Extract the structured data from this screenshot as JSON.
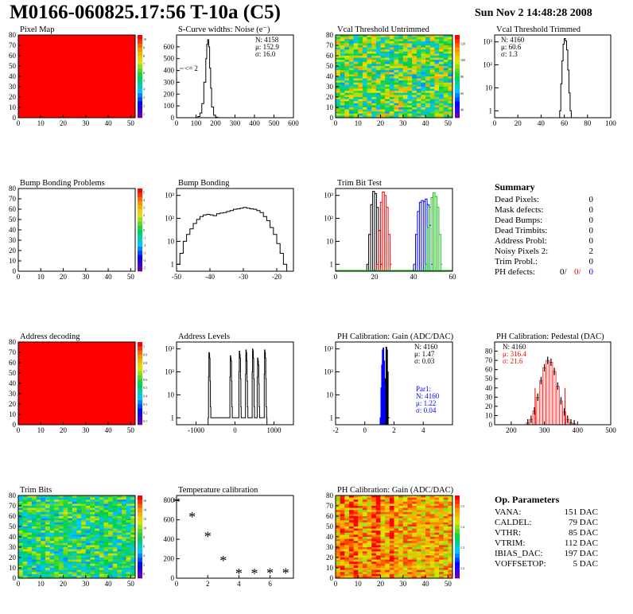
{
  "header": {
    "title": "M0166-060825.17:56 T-10a (C5)",
    "date": "Sun Nov  2 14:48:28 2008"
  },
  "colors": {
    "red": "#ff0000",
    "blue": "#0000ff",
    "green": "#00cc00",
    "black": "#000000"
  },
  "chart_data": [
    {
      "type": "heatmap",
      "title": "Pixel Map",
      "xlim": [
        0,
        52
      ],
      "ylim": [
        0,
        80
      ],
      "xticks": [
        "0",
        "10",
        "20",
        "30",
        "40",
        "50"
      ],
      "yticks": [
        "0",
        "10",
        "20",
        "30",
        "40",
        "50",
        "60",
        "70",
        "80"
      ],
      "uniform_value": 10,
      "palette_ticks": [
        "1",
        "2",
        "3",
        "4",
        "5",
        "6",
        "7",
        "8",
        "9",
        "10"
      ]
    },
    {
      "type": "bar",
      "title": "S-Curve widths: Noise (e⁻)",
      "xlim": [
        0,
        600
      ],
      "ylim": [
        0,
        700
      ],
      "xticks": [
        "0",
        "100",
        "200",
        "300",
        "400",
        "500",
        "600"
      ],
      "yticks": [
        "0",
        "100",
        "200",
        "300",
        "400",
        "500",
        "600"
      ],
      "stats": [
        "N: 4158",
        "μ: 152.9",
        "σ: 16.0"
      ],
      "annotation": "<= 2",
      "x": [
        100,
        110,
        120,
        130,
        140,
        150,
        155,
        160,
        165,
        170,
        175,
        180,
        190,
        200,
        210
      ],
      "values": [
        2,
        10,
        40,
        120,
        300,
        500,
        620,
        660,
        600,
        420,
        250,
        90,
        20,
        5,
        1
      ]
    },
    {
      "type": "heatmap",
      "title": "Vcal Threshold Untrimmed",
      "xlim": [
        0,
        52
      ],
      "ylim": [
        0,
        80
      ],
      "xticks": [
        "0",
        "10",
        "20",
        "30",
        "40",
        "50"
      ],
      "yticks": [
        "0",
        "10",
        "20",
        "30",
        "40",
        "50",
        "60",
        "70",
        "80"
      ],
      "value_range": [
        40,
        120
      ],
      "palette_ticks": [
        "40",
        "60",
        "80",
        "100",
        "120"
      ]
    },
    {
      "type": "bar",
      "title": "Vcal Threshold Trimmed",
      "log_y": true,
      "xlim": [
        0,
        100
      ],
      "ylim": [
        0.5,
        2000
      ],
      "xticks": [
        "0",
        "20",
        "40",
        "60",
        "80",
        "100"
      ],
      "yticks": [
        "1",
        "10",
        "10²",
        "10³"
      ],
      "stats": [
        "N: 4160",
        "μ: 60.6",
        "σ:  1.3"
      ],
      "x": [
        56,
        57,
        58,
        59,
        60,
        61,
        62,
        63,
        64,
        65
      ],
      "values": [
        1,
        15,
        150,
        800,
        1400,
        1100,
        450,
        60,
        6,
        1
      ]
    },
    {
      "type": "heatmap",
      "title": "Bump Bonding Problems",
      "xlim": [
        0,
        52
      ],
      "ylim": [
        0,
        80
      ],
      "xticks": [
        "0",
        "10",
        "20",
        "30",
        "40",
        "50"
      ],
      "yticks": [
        "0",
        "10",
        "20",
        "30",
        "40",
        "50",
        "60",
        "70",
        "80"
      ],
      "empty": true,
      "palette_ticks": [
        "-5",
        "-4",
        "-3",
        "-2",
        "-1",
        "0",
        "1",
        "2",
        "3",
        "4",
        "5"
      ]
    },
    {
      "type": "bar",
      "title": "Bump Bonding",
      "log_y": true,
      "xlim": [
        -50,
        -15
      ],
      "ylim": [
        0.5,
        2000
      ],
      "xticks": [
        "-50",
        "-40",
        "-30",
        "-20"
      ],
      "yticks": [
        "1",
        "10",
        "10²",
        "10³"
      ],
      "x": [
        -50,
        -49,
        -48,
        -47,
        -46,
        -45,
        -44,
        -43,
        -42,
        -41,
        -40,
        -39,
        -38,
        -37,
        -36,
        -35,
        -34,
        -33,
        -32,
        -31,
        -30,
        -29,
        -28,
        -27,
        -26,
        -25,
        -24,
        -23,
        -22,
        -21,
        -20,
        -19,
        -18,
        -17
      ],
      "values": [
        1,
        3,
        10,
        20,
        35,
        60,
        90,
        120,
        140,
        150,
        140,
        130,
        160,
        170,
        180,
        200,
        220,
        250,
        260,
        280,
        300,
        280,
        260,
        250,
        220,
        180,
        120,
        80,
        40,
        20,
        8,
        3,
        1,
        0
      ]
    },
    {
      "type": "line",
      "title": "Trim Bit Test",
      "log_y": true,
      "xlim": [
        0,
        60
      ],
      "ylim": [
        0.5,
        2000
      ],
      "xticks": [
        "0",
        "20",
        "40",
        "60"
      ],
      "yticks": [
        "1",
        "10",
        "10²",
        "10³"
      ],
      "series": [
        {
          "color": "#000000",
          "x": [
            16,
            17,
            18,
            19,
            20,
            21,
            22,
            23
          ],
          "values": [
            1,
            20,
            400,
            1500,
            1200,
            300,
            30,
            1
          ]
        },
        {
          "color": "#ff0000",
          "x": [
            21,
            22,
            23,
            24,
            25,
            26,
            27,
            28
          ],
          "values": [
            1,
            30,
            500,
            1400,
            1000,
            300,
            20,
            1
          ]
        },
        {
          "color": "#0000ff",
          "x": [
            40,
            41,
            42,
            43,
            44,
            45,
            46,
            47,
            48,
            49
          ],
          "values": [
            1,
            20,
            200,
            500,
            600,
            550,
            700,
            400,
            50,
            1
          ]
        },
        {
          "color": "#00cc00",
          "x": [
            46,
            47,
            48,
            49,
            50,
            51,
            52,
            53,
            54
          ],
          "values": [
            1,
            40,
            300,
            800,
            1300,
            900,
            300,
            20,
            1
          ]
        }
      ]
    },
    {
      "type": "heatmap",
      "title": "Address decoding",
      "xlim": [
        0,
        52
      ],
      "ylim": [
        0,
        80
      ],
      "xticks": [
        "0",
        "10",
        "20",
        "30",
        "40",
        "50"
      ],
      "yticks": [
        "0",
        "10",
        "20",
        "30",
        "40",
        "50",
        "60",
        "70",
        "80"
      ],
      "uniform_value": 1,
      "palette_ticks": [
        "0.1",
        "0.2",
        "0.3",
        "0.4",
        "0.5",
        "0.6",
        "0.7",
        "0.8",
        "0.9",
        "1"
      ]
    },
    {
      "type": "bar",
      "title": "Address Levels",
      "log_y": true,
      "xlim": [
        -1500,
        1500
      ],
      "ylim": [
        0.5,
        2000
      ],
      "xticks": [
        "-1000",
        "0",
        "1000"
      ],
      "yticks": [
        "1",
        "10",
        "10²",
        "10³"
      ],
      "x": [
        -690,
        -680,
        -670,
        -660,
        -650,
        -640,
        -630,
        -620,
        -140,
        -130,
        -120,
        -110,
        -100,
        -90,
        -80,
        -70,
        90,
        100,
        110,
        120,
        130,
        140,
        150,
        160,
        260,
        270,
        280,
        290,
        300,
        310,
        320,
        330,
        430,
        440,
        450,
        460,
        470,
        480,
        490,
        500,
        560,
        570,
        580,
        590,
        600,
        610,
        620,
        630,
        740,
        750,
        760,
        770,
        780,
        790,
        800,
        810
      ],
      "values": [
        1,
        60,
        700,
        600,
        400,
        40,
        3,
        1,
        1,
        60,
        500,
        400,
        300,
        40,
        3,
        1,
        1,
        100,
        800,
        600,
        400,
        50,
        3,
        1,
        1,
        80,
        900,
        700,
        300,
        40,
        3,
        1,
        1,
        100,
        1000,
        800,
        400,
        50,
        3,
        1,
        1,
        60,
        400,
        300,
        200,
        30,
        3,
        1,
        1,
        80,
        900,
        700,
        400,
        50,
        3,
        1
      ]
    },
    {
      "type": "bar",
      "title": "PH Calibration: Gain (ADC/DAC)",
      "log_y": true,
      "xlim": [
        -2,
        6
      ],
      "ylim": [
        0.5,
        2000
      ],
      "xticks": [
        "-2",
        "0",
        "2",
        "4"
      ],
      "yticks": [
        "1",
        "10",
        "10²",
        "10³"
      ],
      "stats": [
        "N: 4160",
        "μ: 1.47",
        "σ: 0.03"
      ],
      "stats2": [
        "Par1:",
        "N: 4160",
        "μ: 1.22",
        "σ: 0.04"
      ],
      "series": [
        {
          "color": "#000000",
          "x": [
            1.35,
            1.4,
            1.45,
            1.5,
            1.55,
            1.6
          ],
          "values": [
            1,
            50,
            1200,
            900,
            100,
            1
          ]
        },
        {
          "color": "#0000ff",
          "x": [
            1.05,
            1.1,
            1.15,
            1.2,
            1.25,
            1.3,
            1.35,
            1.4
          ],
          "values": [
            1,
            20,
            200,
            900,
            1100,
            300,
            30,
            1
          ]
        }
      ]
    },
    {
      "type": "bar",
      "title": "PH Calibration: Pedestal (DAC)",
      "xlim": [
        150,
        500
      ],
      "ylim": [
        0,
        90
      ],
      "xticks": [
        "200",
        "300",
        "400",
        "500"
      ],
      "yticks": [
        "0",
        "10",
        "20",
        "30",
        "40",
        "50",
        "60",
        "70",
        "80"
      ],
      "stats": [
        "N: 4160",
        "μ: 316.4",
        "σ: 21.6"
      ],
      "x": [
        250,
        260,
        270,
        280,
        290,
        300,
        310,
        320,
        330,
        340,
        350,
        360,
        370,
        380,
        390
      ],
      "values": [
        2,
        6,
        15,
        30,
        48,
        62,
        70,
        68,
        58,
        42,
        26,
        14,
        6,
        2,
        1
      ]
    },
    {
      "type": "scatter",
      "title": "Temperature calibration",
      "xlim": [
        0,
        7.5
      ],
      "ylim": [
        0,
        850
      ],
      "xticks": [
        "0",
        "2",
        "4",
        "6"
      ],
      "yticks": [
        "0",
        "200",
        "400",
        "600",
        "800"
      ],
      "x": [
        0,
        1,
        2,
        3,
        4,
        5,
        6,
        7
      ],
      "values": [
        780,
        630,
        430,
        180,
        50,
        50,
        55,
        55
      ]
    },
    {
      "type": "heatmap",
      "title": "Trim Bits",
      "xlim": [
        0,
        52
      ],
      "ylim": [
        0,
        80
      ],
      "xticks": [
        "0",
        "10",
        "20",
        "30",
        "40",
        "50"
      ],
      "yticks": [
        "0",
        "10",
        "20",
        "30",
        "40",
        "50",
        "60",
        "70",
        "80"
      ],
      "value_range": [
        0,
        16
      ],
      "palette_ticks": [
        "0",
        "2",
        "4",
        "6",
        "8",
        "10",
        "12",
        "14",
        "16"
      ]
    },
    {
      "type": "heatmap",
      "title": "PH Calibration: Gain (ADC/DAC)",
      "xlim": [
        0,
        52
      ],
      "ylim": [
        0,
        80
      ],
      "xticks": [
        "0",
        "10",
        "20",
        "30",
        "40",
        "50"
      ],
      "yticks": [
        "0",
        "10",
        "20",
        "30",
        "40",
        "50",
        "60",
        "70",
        "80"
      ],
      "value_range": [
        1.2,
        1.6
      ],
      "palette_ticks": [
        "1.2",
        "1.3",
        "1.4",
        "1.5"
      ]
    }
  ],
  "summary": {
    "title": "Summary",
    "rows": [
      {
        "label": "Dead Pixels:",
        "value": "0"
      },
      {
        "label": "Mask defects:",
        "value": "0"
      },
      {
        "label": "Dead Bumps:",
        "value": "0"
      },
      {
        "label": "Dead Trimbits:",
        "value": "0"
      },
      {
        "label": "Address Probl:",
        "value": "0"
      },
      {
        "label": "Noisy Pixels 2:",
        "value": "2"
      },
      {
        "label": "Trim Probl.:",
        "value": "0"
      }
    ],
    "ph_defects": {
      "label": "PH defects:",
      "values": [
        "0/",
        "0/",
        "0"
      ]
    }
  },
  "op_params": {
    "title": "Op. Parameters",
    "rows": [
      {
        "label": "VANA:",
        "value": "151 DAC"
      },
      {
        "label": "CALDEL:",
        "value": "79 DAC"
      },
      {
        "label": "VTHR:",
        "value": "85 DAC"
      },
      {
        "label": "VTRIM:",
        "value": "112 DAC"
      },
      {
        "label": "IBIAS_DAC:",
        "value": "197 DAC"
      },
      {
        "label": "VOFFSETOP:",
        "value": "5 DAC"
      }
    ]
  }
}
